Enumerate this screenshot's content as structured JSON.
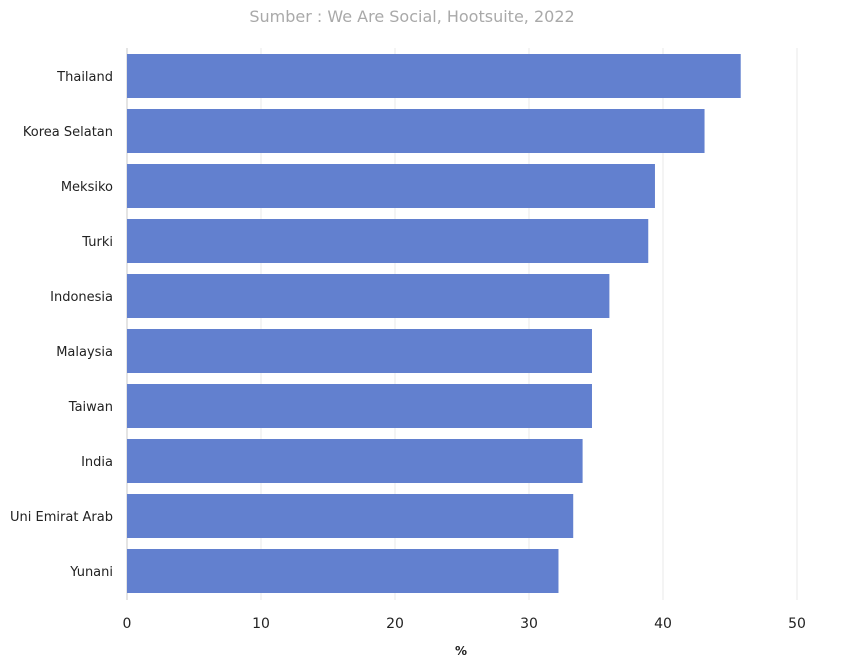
{
  "chart_data": {
    "type": "bar",
    "orientation": "horizontal",
    "title": "",
    "subtitle": "Sumber : We Are Social, Hootsuite, 2022",
    "xlabel": "%",
    "ylabel": "",
    "xlim": [
      0,
      50
    ],
    "xticks": [
      0,
      10,
      20,
      30,
      40,
      50
    ],
    "grid": true,
    "legend": "none",
    "bar_color": "#6280cf",
    "categories": [
      "Thailand",
      "Korea Selatan",
      "Meksiko",
      "Turki",
      "Indonesia",
      "Malaysia",
      "Taiwan",
      "India",
      "Uni Emirat Arab",
      "Yunani"
    ],
    "values": [
      45.8,
      43.1,
      39.4,
      38.9,
      36.0,
      34.7,
      34.7,
      34.0,
      33.3,
      32.2
    ]
  }
}
